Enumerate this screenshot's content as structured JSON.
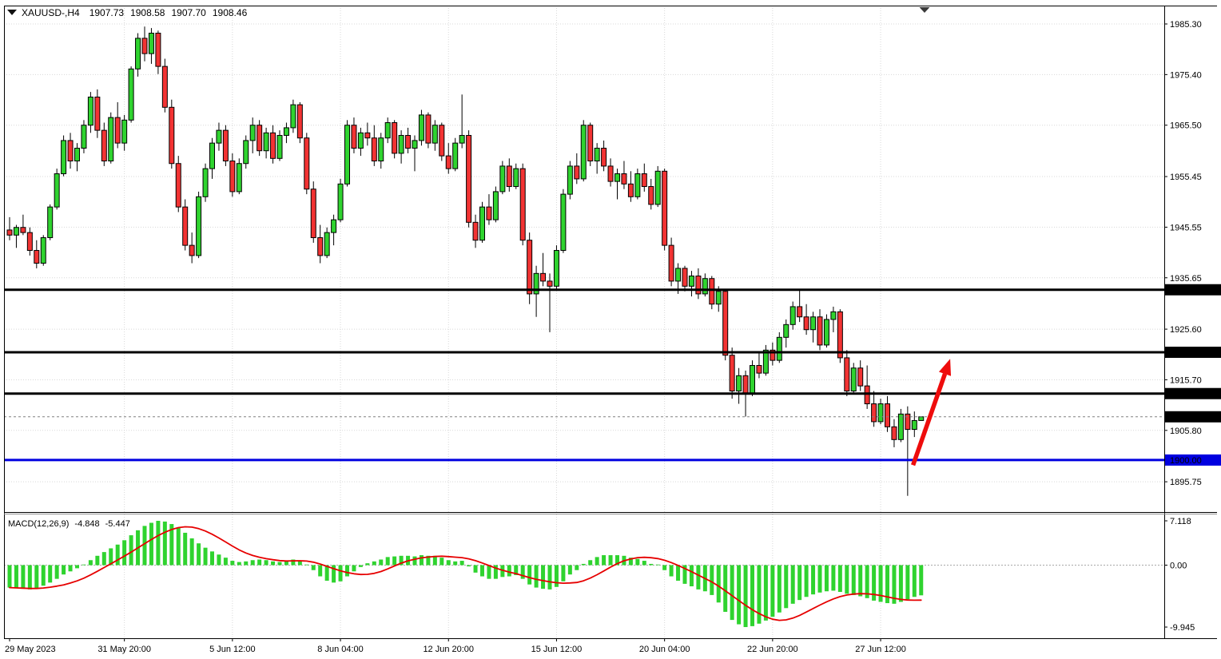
{
  "header": {
    "symbol": "XAUUSD-,H4",
    "open": "1907.73",
    "high": "1908.58",
    "low": "1907.70",
    "close": "1908.46",
    "text_color": "#2222cc"
  },
  "icons": {
    "symbol_dropdown": "triangle-down",
    "chart_shift_marker": "triangle-down"
  },
  "chart_data": [
    {
      "type": "candlestick",
      "title": "XAUUSD-,H4",
      "symbol": "XAUUSD-",
      "timeframe": "H4",
      "y_axis": {
        "side": "right",
        "tick_labels": [
          "1985.30",
          "1975.40",
          "1965.50",
          "1955.45",
          "1945.55",
          "1935.65",
          "1925.60",
          "1915.70",
          "1905.80",
          "1895.75"
        ],
        "tick_values": [
          1985.3,
          1975.4,
          1965.5,
          1955.45,
          1945.55,
          1935.65,
          1925.6,
          1915.7,
          1905.8,
          1895.75
        ],
        "range_top": 1988.9,
        "range_bottom": 1890.1
      },
      "x_axis": {
        "tick_labels": [
          {
            "index": 0,
            "label": "29 May 2023"
          },
          {
            "index": 17,
            "label": "31 May 20:00"
          },
          {
            "index": 33,
            "label": "5 Jun 12:00"
          },
          {
            "index": 49,
            "label": "8 Jun 04:00"
          },
          {
            "index": 65,
            "label": "12 Jun 20:00"
          },
          {
            "index": 81,
            "label": "15 Jun 12:00"
          },
          {
            "index": 97,
            "label": "20 Jun 04:00"
          },
          {
            "index": 113,
            "label": "22 Jun 20:00"
          },
          {
            "index": 129,
            "label": "27 Jun 12:00"
          }
        ]
      },
      "colors": {
        "bull": "#2fd32f",
        "bear": "#f23333",
        "outline": "#000000",
        "wick": "#000000",
        "grid": "#d8d8d8"
      },
      "hlines": [
        {
          "price": 1933.31,
          "label": "1933.31",
          "color": "#000000"
        },
        {
          "price": 1921.08,
          "label": "1921.08",
          "color": "#000000"
        },
        {
          "price": 1913.0,
          "label": "1913.00",
          "color": "#000000"
        },
        {
          "price": 1900.0,
          "label": "1900.00",
          "color": "#0000e0"
        }
      ],
      "current_price": {
        "value": 1908.46,
        "label": "1908.46",
        "box_color": "#000000"
      },
      "arrow_annotation": {
        "from_index": 133.8,
        "from_price": 1899.0,
        "to_index": 139.3,
        "to_price": 1919.8,
        "color": "#ee0c0c"
      },
      "candles_ohlc": [
        [
          1945.0,
          1947.5,
          1943.0,
          1944.0
        ],
        [
          1944.0,
          1946.0,
          1941.5,
          1945.5
        ],
        [
          1945.5,
          1948.0,
          1944.0,
          1944.5
        ],
        [
          1944.5,
          1945.5,
          1940.0,
          1941.0
        ],
        [
          1941.0,
          1943.0,
          1937.5,
          1938.5
        ],
        [
          1938.5,
          1944.0,
          1938.0,
          1943.5
        ],
        [
          1943.5,
          1950.0,
          1943.0,
          1949.5
        ],
        [
          1949.5,
          1957.0,
          1949.0,
          1956.0
        ],
        [
          1956.0,
          1963.5,
          1955.5,
          1962.5
        ],
        [
          1962.5,
          1964.0,
          1957.0,
          1958.5
        ],
        [
          1958.5,
          1962.0,
          1956.5,
          1961.0
        ],
        [
          1961.0,
          1966.5,
          1960.0,
          1965.5
        ],
        [
          1965.5,
          1972.0,
          1964.0,
          1971.0
        ],
        [
          1971.0,
          1972.5,
          1963.0,
          1964.5
        ],
        [
          1964.5,
          1966.0,
          1957.5,
          1958.5
        ],
        [
          1958.5,
          1968.0,
          1958.0,
          1967.0
        ],
        [
          1967.0,
          1970.0,
          1961.0,
          1962.0
        ],
        [
          1962.0,
          1967.5,
          1960.5,
          1966.5
        ],
        [
          1966.5,
          1977.0,
          1966.0,
          1976.5
        ],
        [
          1976.5,
          1983.5,
          1975.0,
          1982.5
        ],
        [
          1982.5,
          1984.8,
          1978.0,
          1979.5
        ],
        [
          1979.5,
          1984.5,
          1977.5,
          1983.5
        ],
        [
          1983.5,
          1984.0,
          1975.5,
          1977.0
        ],
        [
          1977.0,
          1978.5,
          1968.0,
          1969.0
        ],
        [
          1969.0,
          1970.5,
          1957.0,
          1958.0
        ],
        [
          1958.0,
          1959.5,
          1948.5,
          1949.5
        ],
        [
          1949.5,
          1951.0,
          1941.0,
          1942.0
        ],
        [
          1942.0,
          1944.5,
          1938.5,
          1940.0
        ],
        [
          1940.0,
          1952.5,
          1939.5,
          1951.5
        ],
        [
          1951.5,
          1958.0,
          1950.5,
          1957.0
        ],
        [
          1957.0,
          1963.0,
          1955.0,
          1962.0
        ],
        [
          1962.0,
          1966.0,
          1960.5,
          1964.5
        ],
        [
          1964.5,
          1965.5,
          1957.5,
          1958.5
        ],
        [
          1958.5,
          1960.0,
          1951.5,
          1952.5
        ],
        [
          1952.5,
          1959.0,
          1952.0,
          1958.0
        ],
        [
          1958.0,
          1963.5,
          1957.0,
          1962.5
        ],
        [
          1962.5,
          1967.0,
          1960.0,
          1965.5
        ],
        [
          1965.5,
          1966.5,
          1959.5,
          1960.5
        ],
        [
          1960.5,
          1965.0,
          1959.0,
          1964.0
        ],
        [
          1964.0,
          1965.5,
          1958.0,
          1959.0
        ],
        [
          1959.0,
          1964.5,
          1958.5,
          1963.5
        ],
        [
          1963.5,
          1966.0,
          1962.0,
          1965.0
        ],
        [
          1965.0,
          1970.5,
          1964.0,
          1969.5
        ],
        [
          1969.5,
          1970.0,
          1962.0,
          1963.0
        ],
        [
          1963.0,
          1964.0,
          1952.0,
          1953.0
        ],
        [
          1953.0,
          1954.5,
          1942.5,
          1943.5
        ],
        [
          1943.5,
          1946.0,
          1938.5,
          1940.0
        ],
        [
          1940.0,
          1945.5,
          1939.5,
          1944.5
        ],
        [
          1944.5,
          1948.0,
          1942.0,
          1947.0
        ],
        [
          1947.0,
          1955.0,
          1946.5,
          1954.0
        ],
        [
          1954.0,
          1966.5,
          1953.5,
          1965.5
        ],
        [
          1965.5,
          1967.0,
          1960.0,
          1961.0
        ],
        [
          1961.0,
          1965.0,
          1959.5,
          1964.0
        ],
        [
          1964.0,
          1966.0,
          1961.5,
          1963.0
        ],
        [
          1963.0,
          1965.5,
          1957.5,
          1958.5
        ],
        [
          1958.5,
          1964.0,
          1957.0,
          1963.0
        ],
        [
          1963.0,
          1967.0,
          1962.0,
          1966.0
        ],
        [
          1966.0,
          1966.5,
          1959.0,
          1960.0
        ],
        [
          1960.0,
          1964.5,
          1958.0,
          1963.5
        ],
        [
          1963.5,
          1965.0,
          1960.0,
          1961.0
        ],
        [
          1961.0,
          1963.5,
          1956.5,
          1962.5
        ],
        [
          1962.5,
          1968.5,
          1961.5,
          1967.5
        ],
        [
          1967.5,
          1968.0,
          1961.0,
          1962.0
        ],
        [
          1962.0,
          1966.5,
          1960.5,
          1965.5
        ],
        [
          1965.5,
          1966.0,
          1958.5,
          1959.5
        ],
        [
          1959.5,
          1962.0,
          1956.0,
          1957.0
        ],
        [
          1957.0,
          1963.0,
          1956.5,
          1962.0
        ],
        [
          1962.0,
          1971.5,
          1961.0,
          1963.5
        ],
        [
          1963.5,
          1964.5,
          1945.5,
          1946.5
        ],
        [
          1946.5,
          1948.0,
          1941.5,
          1943.0
        ],
        [
          1943.0,
          1950.5,
          1942.5,
          1949.5
        ],
        [
          1949.5,
          1952.0,
          1946.0,
          1947.0
        ],
        [
          1947.0,
          1953.5,
          1946.5,
          1952.5
        ],
        [
          1952.5,
          1958.5,
          1952.0,
          1957.5
        ],
        [
          1957.5,
          1959.0,
          1952.5,
          1953.5
        ],
        [
          1953.5,
          1958.0,
          1953.0,
          1957.0
        ],
        [
          1957.0,
          1958.0,
          1942.0,
          1943.0
        ],
        [
          1943.0,
          1944.5,
          1930.5,
          1932.5
        ],
        [
          1932.5,
          1938.0,
          1928.0,
          1936.5
        ],
        [
          1936.5,
          1940.5,
          1934.0,
          1935.0
        ],
        [
          1935.0,
          1936.5,
          1925.0,
          1934.0
        ],
        [
          1934.0,
          1942.0,
          1933.5,
          1941.0
        ],
        [
          1941.0,
          1953.0,
          1940.5,
          1952.0
        ],
        [
          1952.0,
          1958.5,
          1951.0,
          1957.5
        ],
        [
          1957.5,
          1960.0,
          1954.0,
          1955.0
        ],
        [
          1955.0,
          1966.5,
          1954.5,
          1965.5
        ],
        [
          1965.5,
          1966.0,
          1957.5,
          1958.5
        ],
        [
          1958.5,
          1962.0,
          1956.0,
          1961.0
        ],
        [
          1961.0,
          1962.5,
          1956.5,
          1957.5
        ],
        [
          1957.5,
          1959.0,
          1953.5,
          1954.5
        ],
        [
          1954.5,
          1957.0,
          1951.0,
          1956.0
        ],
        [
          1956.0,
          1958.5,
          1953.0,
          1954.0
        ],
        [
          1954.0,
          1956.5,
          1950.5,
          1951.5
        ],
        [
          1951.5,
          1957.0,
          1951.0,
          1956.0
        ],
        [
          1956.0,
          1958.0,
          1952.5,
          1953.5
        ],
        [
          1953.5,
          1955.0,
          1949.0,
          1950.0
        ],
        [
          1950.0,
          1957.5,
          1949.5,
          1956.5
        ],
        [
          1956.5,
          1957.0,
          1941.0,
          1942.0
        ],
        [
          1942.0,
          1943.5,
          1934.0,
          1935.0
        ],
        [
          1935.0,
          1938.5,
          1932.5,
          1937.5
        ],
        [
          1937.5,
          1938.0,
          1933.0,
          1934.0
        ],
        [
          1934.0,
          1937.0,
          1932.0,
          1936.0
        ],
        [
          1936.0,
          1937.5,
          1931.5,
          1932.5
        ],
        [
          1932.5,
          1936.5,
          1932.0,
          1935.5
        ],
        [
          1935.5,
          1936.0,
          1929.5,
          1930.5
        ],
        [
          1930.5,
          1934.0,
          1929.0,
          1933.0
        ],
        [
          1933.0,
          1933.5,
          1919.5,
          1920.5
        ],
        [
          1920.5,
          1922.0,
          1912.0,
          1913.5
        ],
        [
          1913.5,
          1918.0,
          1911.0,
          1916.5
        ],
        [
          1916.5,
          1917.5,
          1908.5,
          1913.0
        ],
        [
          1913.0,
          1919.5,
          1912.5,
          1918.5
        ],
        [
          1918.5,
          1921.0,
          1916.0,
          1917.0
        ],
        [
          1917.0,
          1922.5,
          1916.5,
          1921.5
        ],
        [
          1921.5,
          1923.0,
          1918.5,
          1919.5
        ],
        [
          1919.5,
          1925.0,
          1919.0,
          1924.0
        ],
        [
          1924.0,
          1927.5,
          1922.0,
          1926.5
        ],
        [
          1926.5,
          1931.0,
          1925.5,
          1930.0
        ],
        [
          1930.0,
          1933.5,
          1927.0,
          1928.0
        ],
        [
          1928.0,
          1930.5,
          1924.5,
          1925.5
        ],
        [
          1925.5,
          1929.0,
          1923.0,
          1928.0
        ],
        [
          1928.0,
          1929.5,
          1921.5,
          1922.5
        ],
        [
          1922.5,
          1928.5,
          1922.0,
          1927.5
        ],
        [
          1927.5,
          1930.0,
          1925.0,
          1929.0
        ],
        [
          1929.0,
          1929.5,
          1919.0,
          1920.0
        ],
        [
          1920.0,
          1921.5,
          1912.5,
          1913.5
        ],
        [
          1913.5,
          1919.0,
          1913.0,
          1918.0
        ],
        [
          1918.0,
          1919.5,
          1913.5,
          1914.5
        ],
        [
          1914.5,
          1918.5,
          1910.0,
          1911.0
        ],
        [
          1911.0,
          1913.5,
          1906.5,
          1907.5
        ],
        [
          1907.5,
          1912.0,
          1907.0,
          1911.0
        ],
        [
          1911.0,
          1912.5,
          1905.5,
          1906.5
        ],
        [
          1906.5,
          1908.0,
          1902.5,
          1904.0
        ],
        [
          1904.0,
          1910.0,
          1903.5,
          1909.0
        ],
        [
          1909.0,
          1910.5,
          1893.0,
          1906.0
        ],
        [
          1906.0,
          1909.5,
          1904.5,
          1907.73
        ],
        [
          1907.73,
          1908.58,
          1907.7,
          1908.46
        ]
      ]
    },
    {
      "type": "bar",
      "name": "MACD",
      "label": {
        "name": "MACD(12,26,9)",
        "macd_value": "-4.848",
        "signal_value": "-5.447"
      },
      "params": {
        "fast": 12,
        "slow": 26,
        "signal": 9
      },
      "y_axis": {
        "side": "right",
        "tick_labels": [
          "7.118",
          "0.00",
          "-9.945"
        ],
        "tick_values": [
          7.118,
          0,
          -9.945
        ]
      },
      "colors": {
        "histogram": "#2fd32f",
        "signal": "#e60000",
        "zero_line": "#a8a8a8"
      },
      "signal_method": "sma9_of_histogram",
      "histogram": [
        -3.6,
        -3.7,
        -3.8,
        -3.9,
        -3.7,
        -3.3,
        -2.8,
        -2.2,
        -1.5,
        -1.0,
        -0.5,
        0.1,
        0.8,
        1.5,
        2.1,
        2.7,
        3.3,
        4.0,
        4.8,
        5.6,
        6.3,
        6.8,
        7.118,
        7.0,
        6.6,
        6.0,
        5.2,
        4.3,
        3.5,
        2.8,
        2.2,
        1.7,
        1.2,
        0.7,
        0.5,
        0.6,
        0.8,
        0.9,
        0.8,
        0.6,
        0.5,
        0.6,
        0.9,
        0.7,
        0.1,
        -0.8,
        -1.8,
        -2.5,
        -2.8,
        -2.6,
        -1.8,
        -1.0,
        -0.3,
        0.3,
        0.6,
        0.9,
        1.3,
        1.4,
        1.5,
        1.5,
        1.4,
        1.6,
        1.5,
        1.5,
        1.2,
        0.8,
        0.6,
        0.7,
        -0.2,
        -1.2,
        -1.8,
        -2.2,
        -2.2,
        -1.9,
        -1.8,
        -1.6,
        -2.2,
        -3.1,
        -3.6,
        -3.8,
        -3.9,
        -3.5,
        -2.6,
        -1.5,
        -0.8,
        0.2,
        0.8,
        1.3,
        1.6,
        1.6,
        1.6,
        1.5,
        1.2,
        1.0,
        0.7,
        0.2,
        0.1,
        -0.8,
        -1.8,
        -2.5,
        -3.0,
        -3.4,
        -3.9,
        -4.2,
        -4.8,
        -6.0,
        -7.5,
        -8.8,
        -9.5,
        -9.945,
        -9.8,
        -9.4,
        -8.9,
        -8.3,
        -7.6,
        -6.9,
        -6.2,
        -5.6,
        -5.1,
        -4.7,
        -4.4,
        -4.2,
        -4.1,
        -4.3,
        -4.6,
        -4.8,
        -5.0,
        -5.3,
        -5.7,
        -5.9,
        -6.1,
        -6.2,
        -5.9,
        -5.5,
        -5.1,
        -4.848
      ]
    }
  ]
}
